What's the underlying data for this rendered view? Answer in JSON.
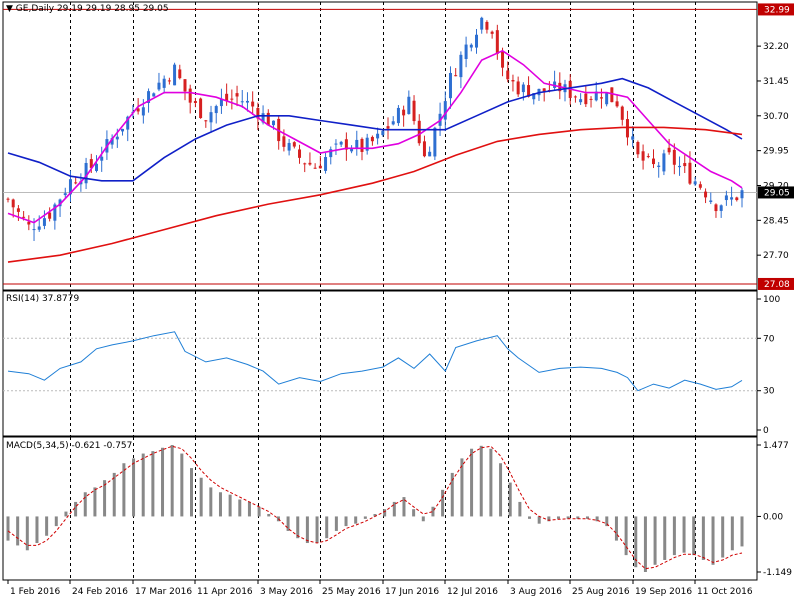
{
  "colors": {
    "bull": "#2e6fd1",
    "bear": "#d62020",
    "ma_fast": "#e000e0",
    "ma_mid": "#1020c8",
    "ma_slow": "#e01010",
    "rsi": "#1f7fd6",
    "macd_hist": "#888888",
    "macd_signal": "#d00000",
    "grid": "#bbbbbb",
    "level_line": "#c00000"
  },
  "chart_data": [
    {
      "type": "candlestick",
      "symbol_line": "GE,Daily  29.19 29.19 28.95 29.05",
      "price_ticks": [
        "32.20",
        "31.45",
        "30.70",
        "29.95",
        "29.20",
        "28.45",
        "27.70"
      ],
      "ylim": [
        27.08,
        32.99
      ],
      "current_price_label": "29.05",
      "high_level_label": "32.99",
      "low_level_label": "27.08",
      "x_dates": [
        "1 Feb 2016",
        "24 Feb 2016",
        "17 Mar 2016",
        "11 Apr 2016",
        "3 May 2016",
        "25 May 2016",
        "17 Jun 2016",
        "12 Jul 2016",
        "3 Aug 2016",
        "25 Aug 2016",
        "19 Sep 2016",
        "11 Oct 2016"
      ],
      "close_path": [
        [
          0,
          28.9
        ],
        [
          4,
          28.3
        ],
        [
          8,
          28.6
        ],
        [
          12,
          29.3
        ],
        [
          16,
          29.6
        ],
        [
          20,
          30.2
        ],
        [
          24,
          30.8
        ],
        [
          28,
          31.3
        ],
        [
          32,
          31.7
        ],
        [
          35,
          31.0
        ],
        [
          38,
          30.7
        ],
        [
          41,
          31.0
        ],
        [
          44,
          31.1
        ],
        [
          47,
          30.9
        ],
        [
          50,
          30.6
        ],
        [
          53,
          30.1
        ],
        [
          56,
          29.8
        ],
        [
          59,
          29.6
        ],
        [
          62,
          29.9
        ],
        [
          65,
          30.1
        ],
        [
          68,
          30.0
        ],
        [
          71,
          30.2
        ],
        [
          74,
          30.6
        ],
        [
          77,
          31.0
        ],
        [
          80,
          29.8
        ],
        [
          82,
          30.4
        ],
        [
          85,
          31.5
        ],
        [
          88,
          32.2
        ],
        [
          91,
          32.8
        ],
        [
          93,
          32.6
        ],
        [
          95,
          31.6
        ],
        [
          98,
          31.3
        ],
        [
          102,
          31.2
        ],
        [
          106,
          31.3
        ],
        [
          110,
          31.1
        ],
        [
          114,
          31.2
        ],
        [
          117,
          31.0
        ],
        [
          119,
          30.4
        ],
        [
          121,
          29.8
        ],
        [
          124,
          29.6
        ],
        [
          127,
          29.8
        ],
        [
          130,
          29.5
        ],
        [
          133,
          29.2
        ],
        [
          136,
          28.8
        ],
        [
          139,
          28.9
        ],
        [
          141,
          29.05
        ]
      ],
      "series": [
        {
          "name": "",
          "kind": "ma_fast",
          "points": [
            [
              0,
              28.6
            ],
            [
              5,
              28.4
            ],
            [
              10,
              28.8
            ],
            [
              15,
              29.4
            ],
            [
              20,
              30.2
            ],
            [
              25,
              30.9
            ],
            [
              30,
              31.2
            ],
            [
              35,
              31.2
            ],
            [
              40,
              31.1
            ],
            [
              45,
              30.9
            ],
            [
              50,
              30.5
            ],
            [
              55,
              30.2
            ],
            [
              60,
              29.9
            ],
            [
              65,
              30.0
            ],
            [
              70,
              30.0
            ],
            [
              75,
              30.1
            ],
            [
              79,
              30.3
            ],
            [
              83,
              30.6
            ],
            [
              87,
              31.2
            ],
            [
              91,
              31.9
            ],
            [
              95,
              32.1
            ],
            [
              99,
              31.8
            ],
            [
              103,
              31.4
            ],
            [
              107,
              31.3
            ],
            [
              111,
              31.2
            ],
            [
              115,
              31.2
            ],
            [
              119,
              31.1
            ],
            [
              123,
              30.6
            ],
            [
              127,
              30.1
            ],
            [
              131,
              29.8
            ],
            [
              135,
              29.5
            ],
            [
              139,
              29.3
            ],
            [
              141,
              29.15
            ]
          ]
        },
        {
          "name": "",
          "kind": "ma_mid",
          "points": [
            [
              0,
              29.9
            ],
            [
              6,
              29.7
            ],
            [
              12,
              29.4
            ],
            [
              18,
              29.3
            ],
            [
              24,
              29.3
            ],
            [
              30,
              29.8
            ],
            [
              36,
              30.2
            ],
            [
              42,
              30.5
            ],
            [
              48,
              30.7
            ],
            [
              54,
              30.7
            ],
            [
              60,
              30.6
            ],
            [
              66,
              30.5
            ],
            [
              72,
              30.4
            ],
            [
              78,
              30.4
            ],
            [
              84,
              30.4
            ],
            [
              90,
              30.7
            ],
            [
              96,
              31.0
            ],
            [
              102,
              31.2
            ],
            [
              108,
              31.3
            ],
            [
              114,
              31.4
            ],
            [
              118,
              31.5
            ],
            [
              123,
              31.3
            ],
            [
              128,
              31.0
            ],
            [
              133,
              30.7
            ],
            [
              138,
              30.4
            ],
            [
              141,
              30.2
            ]
          ]
        },
        {
          "name": "",
          "kind": "ma_slow",
          "points": [
            [
              0,
              27.55
            ],
            [
              10,
              27.7
            ],
            [
              20,
              27.95
            ],
            [
              30,
              28.25
            ],
            [
              40,
              28.55
            ],
            [
              50,
              28.8
            ],
            [
              60,
              29.0
            ],
            [
              70,
              29.25
            ],
            [
              78,
              29.5
            ],
            [
              86,
              29.85
            ],
            [
              94,
              30.15
            ],
            [
              102,
              30.3
            ],
            [
              110,
              30.4
            ],
            [
              118,
              30.45
            ],
            [
              126,
              30.45
            ],
            [
              134,
              30.4
            ],
            [
              141,
              30.3
            ]
          ]
        }
      ]
    },
    {
      "type": "line",
      "title": "RSI(14) 37.8779",
      "ticks": [
        "100",
        "70",
        "30",
        "0"
      ],
      "levels": [
        70,
        30
      ],
      "ylim": [
        0,
        100
      ],
      "series": [
        {
          "name": "",
          "points": [
            [
              0,
              45
            ],
            [
              4,
              43
            ],
            [
              7,
              38
            ],
            [
              10,
              47
            ],
            [
              14,
              52
            ],
            [
              17,
              62
            ],
            [
              20,
              65
            ],
            [
              24,
              68
            ],
            [
              28,
              72
            ],
            [
              32,
              75
            ],
            [
              34,
              60
            ],
            [
              38,
              52
            ],
            [
              42,
              55
            ],
            [
              46,
              50
            ],
            [
              49,
              45
            ],
            [
              52,
              35
            ],
            [
              56,
              40
            ],
            [
              60,
              37
            ],
            [
              64,
              43
            ],
            [
              68,
              45
            ],
            [
              72,
              48
            ],
            [
              75,
              55
            ],
            [
              78,
              47
            ],
            [
              81,
              58
            ],
            [
              84,
              45
            ],
            [
              86,
              63
            ],
            [
              90,
              68
            ],
            [
              94,
              72
            ],
            [
              96,
              62
            ],
            [
              98,
              55
            ],
            [
              102,
              44
            ],
            [
              106,
              47
            ],
            [
              110,
              48
            ],
            [
              114,
              47
            ],
            [
              117,
              44
            ],
            [
              119,
              40
            ],
            [
              121,
              30
            ],
            [
              124,
              35
            ],
            [
              127,
              32
            ],
            [
              130,
              38
            ],
            [
              133,
              35
            ],
            [
              136,
              31
            ],
            [
              139,
              33
            ],
            [
              141,
              37.9
            ]
          ]
        }
      ]
    },
    {
      "type": "bar",
      "title": "MACD(5,34,5) -0.621 -0.757",
      "ticks": [
        "1.477",
        "0.00",
        "-1.149"
      ],
      "ylim": [
        -1.149,
        1.477
      ],
      "histogram": [
        -0.5,
        -0.6,
        -0.7,
        -0.55,
        -0.4,
        -0.2,
        0.1,
        0.3,
        0.5,
        0.6,
        0.75,
        0.9,
        1.1,
        1.2,
        1.3,
        1.35,
        1.42,
        1.477,
        1.3,
        1.0,
        0.8,
        0.6,
        0.5,
        0.45,
        0.35,
        0.3,
        0.2,
        0.05,
        -0.1,
        -0.3,
        -0.45,
        -0.55,
        -0.55,
        -0.45,
        -0.3,
        -0.2,
        -0.15,
        -0.05,
        0.05,
        0.15,
        0.3,
        0.4,
        0.15,
        -0.1,
        0.2,
        0.55,
        0.9,
        1.2,
        1.4,
        1.46,
        1.4,
        1.1,
        0.7,
        0.3,
        -0.05,
        -0.15,
        -0.1,
        -0.05,
        -0.05,
        -0.05,
        -0.05,
        -0.1,
        -0.2,
        -0.5,
        -0.8,
        -1.05,
        -1.149,
        -1.0,
        -0.9,
        -0.8,
        -0.75,
        -0.8,
        -0.9,
        -1.0,
        -0.85,
        -0.7,
        -0.62
      ],
      "signal": [
        -0.3,
        -0.45,
        -0.6,
        -0.6,
        -0.5,
        -0.3,
        -0.05,
        0.2,
        0.4,
        0.55,
        0.65,
        0.8,
        0.95,
        1.1,
        1.2,
        1.3,
        1.38,
        1.45,
        1.4,
        1.2,
        0.95,
        0.75,
        0.6,
        0.5,
        0.4,
        0.3,
        0.2,
        0.1,
        -0.05,
        -0.25,
        -0.4,
        -0.5,
        -0.55,
        -0.5,
        -0.38,
        -0.25,
        -0.18,
        -0.1,
        0.0,
        0.1,
        0.25,
        0.35,
        0.2,
        0.05,
        0.1,
        0.4,
        0.75,
        1.05,
        1.3,
        1.42,
        1.45,
        1.25,
        0.9,
        0.5,
        0.15,
        0.0,
        -0.08,
        -0.06,
        -0.05,
        -0.05,
        -0.05,
        -0.08,
        -0.15,
        -0.35,
        -0.62,
        -0.9,
        -1.08,
        -1.05,
        -0.95,
        -0.85,
        -0.78,
        -0.78,
        -0.85,
        -0.95,
        -0.9,
        -0.8,
        -0.757
      ]
    }
  ]
}
